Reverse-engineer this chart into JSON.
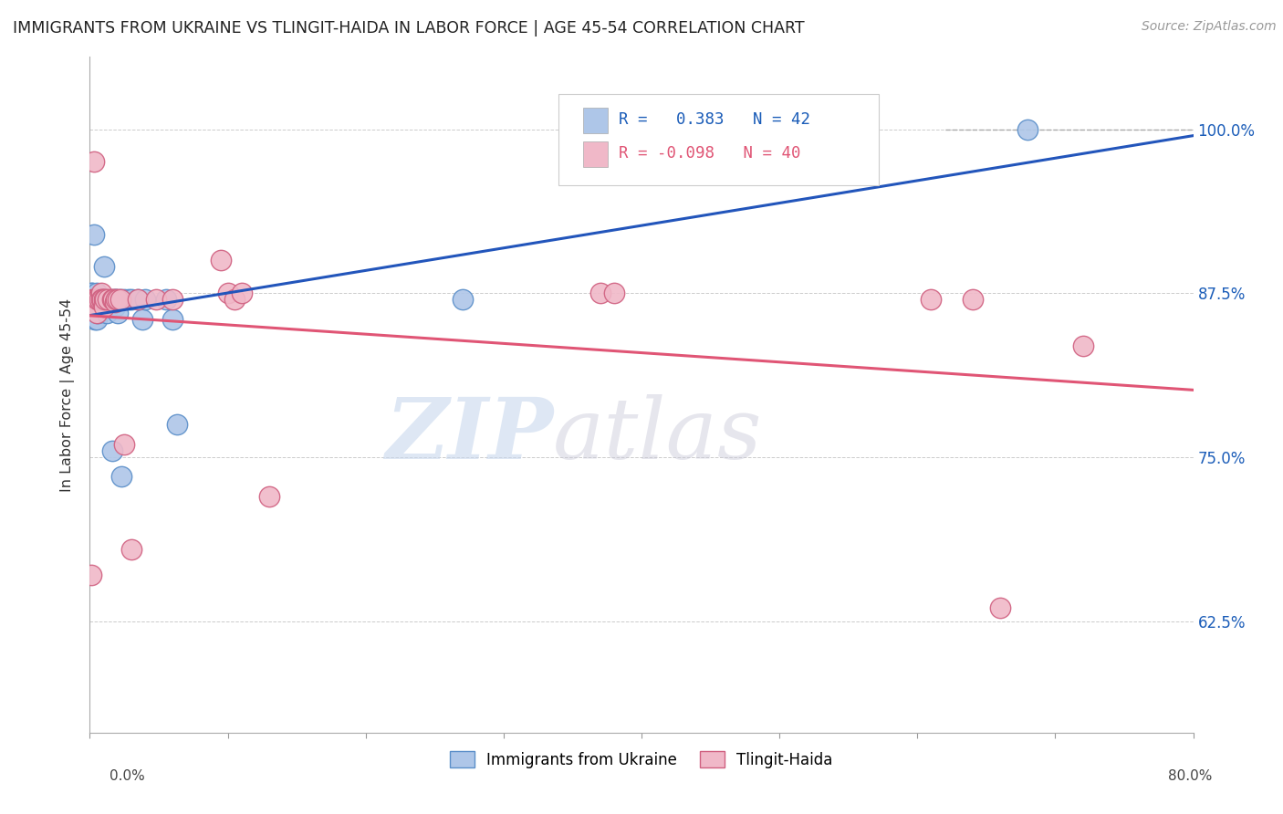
{
  "title": "IMMIGRANTS FROM UKRAINE VS TLINGIT-HAIDA IN LABOR FORCE | AGE 45-54 CORRELATION CHART",
  "source": "Source: ZipAtlas.com",
  "ylabel": "In Labor Force | Age 45-54",
  "yticks": [
    0.625,
    0.75,
    0.875,
    1.0
  ],
  "ytick_labels": [
    "62.5%",
    "75.0%",
    "87.5%",
    "100.0%"
  ],
  "xmin": 0.0,
  "xmax": 0.8,
  "ymin": 0.54,
  "ymax": 1.055,
  "ukraine_R": 0.383,
  "ukraine_N": 42,
  "tlingit_R": -0.098,
  "tlingit_N": 40,
  "ukraine_color": "#aec6e8",
  "ukraine_edge": "#5b8fc9",
  "tlingit_color": "#f0b8c8",
  "tlingit_edge": "#d06080",
  "ukraine_line_color": "#2255bb",
  "tlingit_line_color": "#e05575",
  "watermark_zip": "ZIP",
  "watermark_atlas": "atlas",
  "ukraine_x": [
    0.001,
    0.002,
    0.003,
    0.003,
    0.003,
    0.004,
    0.004,
    0.005,
    0.005,
    0.005,
    0.006,
    0.006,
    0.007,
    0.007,
    0.007,
    0.008,
    0.009,
    0.01,
    0.01,
    0.011,
    0.012,
    0.012,
    0.013,
    0.015,
    0.016,
    0.018,
    0.018,
    0.019,
    0.02,
    0.022,
    0.023,
    0.025,
    0.028,
    0.03,
    0.035,
    0.038,
    0.04,
    0.055,
    0.06,
    0.063,
    0.27,
    0.68
  ],
  "ukraine_y": [
    0.875,
    0.875,
    0.87,
    0.865,
    0.92,
    0.87,
    0.855,
    0.875,
    0.87,
    0.855,
    0.87,
    0.86,
    0.87,
    0.87,
    0.87,
    0.87,
    0.87,
    0.895,
    0.87,
    0.87,
    0.87,
    0.86,
    0.87,
    0.87,
    0.755,
    0.87,
    0.865,
    0.87,
    0.86,
    0.87,
    0.735,
    0.87,
    0.87,
    0.87,
    0.87,
    0.855,
    0.87,
    0.87,
    0.855,
    0.775,
    0.87,
    1.0
  ],
  "tlingit_x": [
    0.001,
    0.002,
    0.003,
    0.003,
    0.004,
    0.004,
    0.005,
    0.005,
    0.006,
    0.006,
    0.007,
    0.008,
    0.008,
    0.009,
    0.01,
    0.01,
    0.011,
    0.013,
    0.016,
    0.017,
    0.018,
    0.019,
    0.02,
    0.022,
    0.025,
    0.03,
    0.035,
    0.048,
    0.06,
    0.095,
    0.1,
    0.105,
    0.11,
    0.13,
    0.37,
    0.38,
    0.61,
    0.64,
    0.66,
    0.72
  ],
  "tlingit_y": [
    0.66,
    0.87,
    0.87,
    0.975,
    0.87,
    0.865,
    0.87,
    0.86,
    0.87,
    0.87,
    0.87,
    0.875,
    0.87,
    0.87,
    0.87,
    0.865,
    0.87,
    0.87,
    0.87,
    0.87,
    0.868,
    0.87,
    0.87,
    0.87,
    0.76,
    0.68,
    0.87,
    0.87,
    0.87,
    0.9,
    0.875,
    0.87,
    0.875,
    0.72,
    0.875,
    0.875,
    0.87,
    0.87,
    0.635,
    0.835
  ]
}
